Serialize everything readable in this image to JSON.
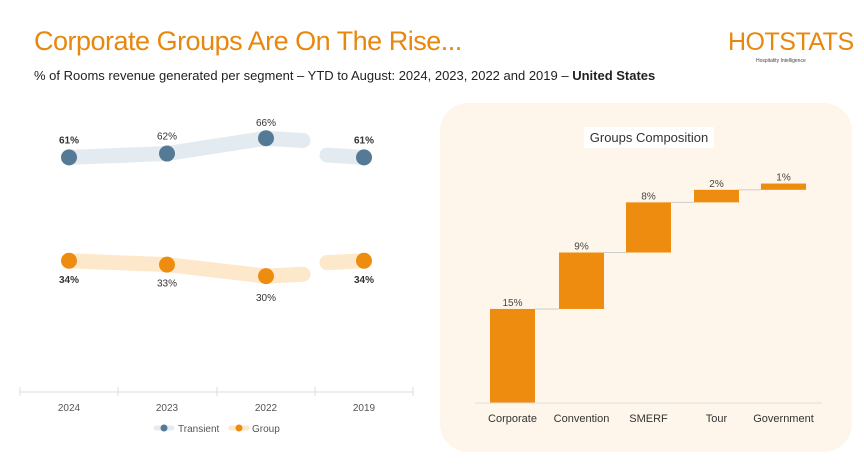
{
  "header": {
    "title": "Corporate Groups Are On The Rise...",
    "subtitle": "% of Rooms revenue generated per segment – YTD to August: 2024, 2023, 2022 and 2019 – ",
    "subtitle_bold": "United States",
    "logo": "HOTSTATS",
    "logo_tagline": "Hospitality Intelligence"
  },
  "colors": {
    "accent": "#E8870E",
    "transient": "#557A95",
    "transient_band": "#E4EBF0",
    "group": "#EE8C0F",
    "group_band": "#FDE8CC",
    "panel": "#FEF6EA"
  },
  "chart_data": [
    {
      "type": "line",
      "categories": [
        "2024",
        "2023",
        "2022",
        "2019"
      ],
      "series": [
        {
          "name": "Transient",
          "values": [
            61,
            62,
            66,
            61
          ],
          "labels": [
            "61%",
            "62%",
            "66%",
            "61%"
          ]
        },
        {
          "name": "Group",
          "values": [
            34,
            33,
            30,
            34
          ],
          "labels": [
            "34%",
            "33%",
            "30%",
            "34%"
          ]
        }
      ],
      "legend": "bottom",
      "grid": false,
      "break_before": "2019"
    },
    {
      "type": "bar",
      "subtype": "waterfall",
      "title": "Groups Composition",
      "categories": [
        "Corporate",
        "Convention",
        "SMERF",
        "Tour",
        "Government"
      ],
      "values": [
        15,
        9,
        8,
        2,
        1
      ],
      "labels": [
        "15%",
        "9%",
        "8%",
        "2%",
        "1%"
      ],
      "grid": false
    }
  ]
}
